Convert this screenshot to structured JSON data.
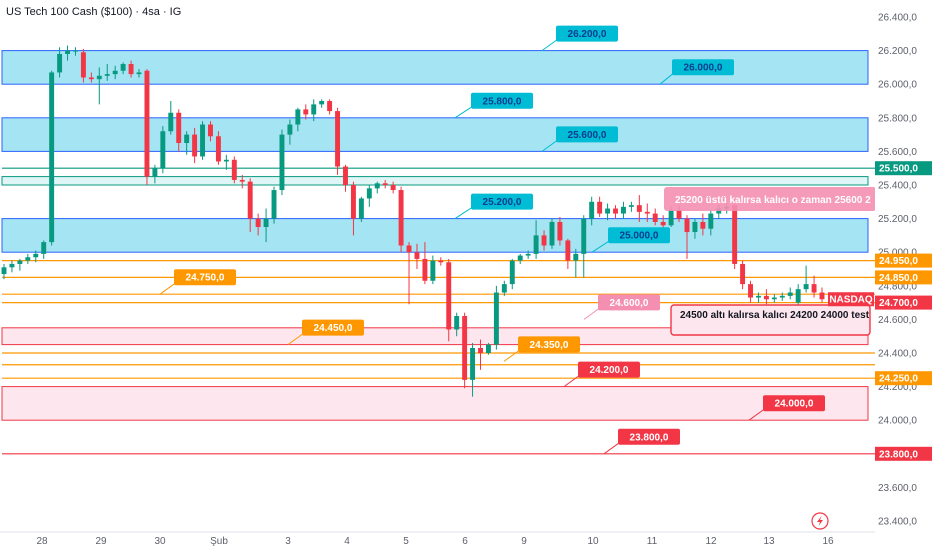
{
  "header": {
    "title": "US Tech 100 Cash ($100) · 4sa · IG"
  },
  "chart_data": {
    "type": "candlestick",
    "title": "US Tech 100 Cash ($100) · 4sa · IG",
    "ylim": [
      23400,
      26400
    ],
    "y_ticks": [
      {
        "value": 26400,
        "label": "26.400,0"
      },
      {
        "value": 26200,
        "label": "26.200,0"
      },
      {
        "value": 26000,
        "label": "26.000,0"
      },
      {
        "value": 25800,
        "label": "25.800,0"
      },
      {
        "value": 25600,
        "label": "25.600,0"
      },
      {
        "value": 25400,
        "label": "25.400,0"
      },
      {
        "value": 25200,
        "label": "25.200,0"
      },
      {
        "value": 25000,
        "label": "25.000,0"
      },
      {
        "value": 24800,
        "label": "24.800,0"
      },
      {
        "value": 24600,
        "label": "24.600,0"
      },
      {
        "value": 24400,
        "label": "24.400,0"
      },
      {
        "value": 24200,
        "label": "24.200,0"
      },
      {
        "value": 24000,
        "label": "24.000,0"
      },
      {
        "value": 23800,
        "label": "23.800,0"
      },
      {
        "value": 23600,
        "label": "23.600,0"
      },
      {
        "value": 23400,
        "label": "23.400,0"
      }
    ],
    "x_ticks": [
      "28",
      "29",
      "30",
      "Şub",
      "3",
      "4",
      "5",
      "6",
      "9",
      "10",
      "11",
      "12",
      "13",
      "16"
    ],
    "candles": [
      {
        "o": 24870,
        "h": 24930,
        "l": 24840,
        "c": 24910
      },
      {
        "o": 24910,
        "h": 24950,
        "l": 24880,
        "c": 24930
      },
      {
        "o": 24930,
        "h": 24960,
        "l": 24890,
        "c": 24950
      },
      {
        "o": 24950,
        "h": 24990,
        "l": 24930,
        "c": 24970
      },
      {
        "o": 24970,
        "h": 25010,
        "l": 24940,
        "c": 24990
      },
      {
        "o": 24990,
        "h": 25070,
        "l": 24960,
        "c": 25060
      },
      {
        "o": 25060,
        "h": 26080,
        "l": 25040,
        "c": 26070
      },
      {
        "o": 26070,
        "h": 26220,
        "l": 26040,
        "c": 26180
      },
      {
        "o": 26180,
        "h": 26230,
        "l": 26140,
        "c": 26200
      },
      {
        "o": 26200,
        "h": 26220,
        "l": 26170,
        "c": 26200
      },
      {
        "o": 26190,
        "h": 26210,
        "l": 26010,
        "c": 26040
      },
      {
        "o": 26040,
        "h": 26070,
        "l": 26010,
        "c": 26030
      },
      {
        "o": 26030,
        "h": 26100,
        "l": 25880,
        "c": 26050
      },
      {
        "o": 26050,
        "h": 26120,
        "l": 26020,
        "c": 26060
      },
      {
        "o": 26060,
        "h": 26110,
        "l": 26030,
        "c": 26080
      },
      {
        "o": 26080,
        "h": 26130,
        "l": 26060,
        "c": 26120
      },
      {
        "o": 26120,
        "h": 26140,
        "l": 26040,
        "c": 26060
      },
      {
        "o": 26060,
        "h": 26090,
        "l": 26040,
        "c": 26070
      },
      {
        "o": 26080,
        "h": 26090,
        "l": 25400,
        "c": 25450
      },
      {
        "o": 25450,
        "h": 25520,
        "l": 25410,
        "c": 25500
      },
      {
        "o": 25500,
        "h": 25750,
        "l": 25470,
        "c": 25720
      },
      {
        "o": 25720,
        "h": 25900,
        "l": 25700,
        "c": 25830
      },
      {
        "o": 25830,
        "h": 25850,
        "l": 25600,
        "c": 25650
      },
      {
        "o": 25650,
        "h": 25720,
        "l": 25580,
        "c": 25700
      },
      {
        "o": 25700,
        "h": 25740,
        "l": 25530,
        "c": 25570
      },
      {
        "o": 25570,
        "h": 25780,
        "l": 25550,
        "c": 25760
      },
      {
        "o": 25760,
        "h": 25780,
        "l": 25660,
        "c": 25690
      },
      {
        "o": 25690,
        "h": 25720,
        "l": 25520,
        "c": 25540
      },
      {
        "o": 25540,
        "h": 25580,
        "l": 25490,
        "c": 25550
      },
      {
        "o": 25550,
        "h": 25570,
        "l": 25410,
        "c": 25430
      },
      {
        "o": 25430,
        "h": 25460,
        "l": 25380,
        "c": 25420
      },
      {
        "o": 25420,
        "h": 25440,
        "l": 25120,
        "c": 25200
      },
      {
        "o": 25200,
        "h": 25230,
        "l": 25100,
        "c": 25150
      },
      {
        "o": 25150,
        "h": 25260,
        "l": 25060,
        "c": 25200
      },
      {
        "o": 25200,
        "h": 25390,
        "l": 25170,
        "c": 25370
      },
      {
        "o": 25370,
        "h": 25730,
        "l": 25340,
        "c": 25700
      },
      {
        "o": 25700,
        "h": 25790,
        "l": 25640,
        "c": 25760
      },
      {
        "o": 25760,
        "h": 25860,
        "l": 25720,
        "c": 25850
      },
      {
        "o": 25850,
        "h": 25880,
        "l": 25790,
        "c": 25820
      },
      {
        "o": 25820,
        "h": 25910,
        "l": 25780,
        "c": 25880
      },
      {
        "o": 25880,
        "h": 25910,
        "l": 25860,
        "c": 25900
      },
      {
        "o": 25900,
        "h": 25910,
        "l": 25820,
        "c": 25840
      },
      {
        "o": 25840,
        "h": 25860,
        "l": 25460,
        "c": 25510
      },
      {
        "o": 25510,
        "h": 25520,
        "l": 25360,
        "c": 25400
      },
      {
        "o": 25400,
        "h": 25420,
        "l": 25100,
        "c": 25200
      },
      {
        "o": 25200,
        "h": 25330,
        "l": 25180,
        "c": 25320
      },
      {
        "o": 25320,
        "h": 25400,
        "l": 25270,
        "c": 25380
      },
      {
        "o": 25380,
        "h": 25420,
        "l": 25350,
        "c": 25410
      },
      {
        "o": 25410,
        "h": 25430,
        "l": 25380,
        "c": 25400
      },
      {
        "o": 25400,
        "h": 25420,
        "l": 25350,
        "c": 25370
      },
      {
        "o": 25370,
        "h": 25390,
        "l": 25000,
        "c": 25040
      },
      {
        "o": 25040,
        "h": 25060,
        "l": 24690,
        "c": 25000
      },
      {
        "o": 25000,
        "h": 25050,
        "l": 24900,
        "c": 24960
      },
      {
        "o": 24960,
        "h": 25060,
        "l": 24810,
        "c": 24830
      },
      {
        "o": 24830,
        "h": 24980,
        "l": 24810,
        "c": 24950
      },
      {
        "o": 24950,
        "h": 24970,
        "l": 24920,
        "c": 24940
      },
      {
        "o": 24940,
        "h": 24960,
        "l": 24470,
        "c": 24540
      },
      {
        "o": 24540,
        "h": 24640,
        "l": 24500,
        "c": 24620
      },
      {
        "o": 24620,
        "h": 24640,
        "l": 24190,
        "c": 24240
      },
      {
        "o": 24240,
        "h": 24460,
        "l": 24140,
        "c": 24430
      },
      {
        "o": 24430,
        "h": 24480,
        "l": 24300,
        "c": 24400
      },
      {
        "o": 24400,
        "h": 24460,
        "l": 24390,
        "c": 24450
      },
      {
        "o": 24450,
        "h": 24800,
        "l": 24420,
        "c": 24760
      },
      {
        "o": 24760,
        "h": 24830,
        "l": 24740,
        "c": 24810
      },
      {
        "o": 24810,
        "h": 24960,
        "l": 24780,
        "c": 24950
      },
      {
        "o": 24950,
        "h": 24990,
        "l": 24930,
        "c": 24980
      },
      {
        "o": 24980,
        "h": 25010,
        "l": 24960,
        "c": 24990
      },
      {
        "o": 24990,
        "h": 25190,
        "l": 24960,
        "c": 25100
      },
      {
        "o": 25100,
        "h": 25130,
        "l": 25010,
        "c": 25040
      },
      {
        "o": 25040,
        "h": 25200,
        "l": 25020,
        "c": 25180
      },
      {
        "o": 25180,
        "h": 25210,
        "l": 25040,
        "c": 25070
      },
      {
        "o": 25070,
        "h": 25080,
        "l": 24900,
        "c": 24950
      },
      {
        "o": 24950,
        "h": 25020,
        "l": 24850,
        "c": 24990
      },
      {
        "o": 24990,
        "h": 25220,
        "l": 24850,
        "c": 25200
      },
      {
        "o": 25200,
        "h": 25330,
        "l": 25160,
        "c": 25300
      },
      {
        "o": 25300,
        "h": 25330,
        "l": 25210,
        "c": 25230
      },
      {
        "o": 25230,
        "h": 25290,
        "l": 25190,
        "c": 25260
      },
      {
        "o": 25260,
        "h": 25280,
        "l": 25200,
        "c": 25230
      },
      {
        "o": 25230,
        "h": 25300,
        "l": 25200,
        "c": 25270
      },
      {
        "o": 25270,
        "h": 25300,
        "l": 25240,
        "c": 25280
      },
      {
        "o": 25280,
        "h": 25340,
        "l": 25180,
        "c": 25240
      },
      {
        "o": 25240,
        "h": 25290,
        "l": 25180,
        "c": 25230
      },
      {
        "o": 25230,
        "h": 25260,
        "l": 25160,
        "c": 25180
      },
      {
        "o": 25180,
        "h": 25220,
        "l": 25100,
        "c": 25160
      },
      {
        "o": 25160,
        "h": 25270,
        "l": 25150,
        "c": 25250
      },
      {
        "o": 25250,
        "h": 25280,
        "l": 25180,
        "c": 25200
      },
      {
        "o": 25200,
        "h": 25220,
        "l": 24960,
        "c": 25120
      },
      {
        "o": 25120,
        "h": 25200,
        "l": 25080,
        "c": 25180
      },
      {
        "o": 25180,
        "h": 25230,
        "l": 25100,
        "c": 25140
      },
      {
        "o": 25140,
        "h": 25250,
        "l": 25100,
        "c": 25230
      },
      {
        "o": 25230,
        "h": 25280,
        "l": 25200,
        "c": 25260
      },
      {
        "o": 25260,
        "h": 25290,
        "l": 25230,
        "c": 25270
      },
      {
        "o": 25280,
        "h": 25290,
        "l": 24900,
        "c": 24930
      },
      {
        "o": 24930,
        "h": 24950,
        "l": 24780,
        "c": 24810
      },
      {
        "o": 24810,
        "h": 24830,
        "l": 24700,
        "c": 24730
      },
      {
        "o": 24730,
        "h": 24760,
        "l": 24700,
        "c": 24740
      },
      {
        "o": 24740,
        "h": 24780,
        "l": 24690,
        "c": 24720
      },
      {
        "o": 24720,
        "h": 24750,
        "l": 24700,
        "c": 24730
      },
      {
        "o": 24730,
        "h": 24760,
        "l": 24710,
        "c": 24740
      },
      {
        "o": 24740,
        "h": 24790,
        "l": 24720,
        "c": 24760
      },
      {
        "o": 24700,
        "h": 24810,
        "l": 24600,
        "c": 24780
      },
      {
        "o": 24780,
        "h": 24920,
        "l": 24760,
        "c": 24810
      },
      {
        "o": 24810,
        "h": 24860,
        "l": 24730,
        "c": 24760
      },
      {
        "o": 24760,
        "h": 24790,
        "l": 24700,
        "c": 24720
      }
    ],
    "zones": [
      {
        "from": 26000,
        "to": 26200,
        "color": "#a5e4f3",
        "border": "#2962ff"
      },
      {
        "from": 25600,
        "to": 25800,
        "color": "#a5e4f3",
        "border": "#2962ff"
      },
      {
        "from": 25400,
        "to": 25450,
        "color": "#e0f5f5",
        "border": "#089981"
      },
      {
        "from": 25000,
        "to": 25200,
        "color": "#a5e4f3",
        "border": "#2962ff"
      },
      {
        "from": 24450,
        "to": 24550,
        "color": "#fde6ee",
        "border": "#f23645"
      },
      {
        "from": 24000,
        "to": 24200,
        "color": "#fde6ee",
        "border": "#f23645"
      }
    ],
    "h_lines": [
      {
        "value": 25500,
        "color": "#089981"
      },
      {
        "value": 24950,
        "color": "#ff9800"
      },
      {
        "value": 24850,
        "color": "#ff9800"
      },
      {
        "value": 24750,
        "color": "#ff9800"
      },
      {
        "value": 24700,
        "color": "#ff9800"
      },
      {
        "value": 24400,
        "color": "#ff9800"
      },
      {
        "value": 24330,
        "color": "#ff9800"
      },
      {
        "value": 24250,
        "color": "#ff9800"
      },
      {
        "value": 23800,
        "color": "#f23645"
      }
    ],
    "callouts": [
      {
        "text": "26.200,0",
        "value": 26200,
        "color": "#00bcd4"
      },
      {
        "text": "26.000,0",
        "value": 26000,
        "color": "#00bcd4"
      },
      {
        "text": "25.800,0",
        "value": 25800,
        "color": "#00bcd4"
      },
      {
        "text": "25.600,0",
        "value": 25600,
        "color": "#00bcd4"
      },
      {
        "text": "25.200,0",
        "value": 25200,
        "color": "#00bcd4"
      },
      {
        "text": "25.000,0",
        "value": 25000,
        "color": "#00bcd4"
      },
      {
        "text": "24.750,0",
        "value": 24750,
        "color": "#ff9800"
      },
      {
        "text": "24.600,0",
        "value": 24600,
        "color": "#f48fb1"
      },
      {
        "text": "24.450,0",
        "value": 24450,
        "color": "#ff9800"
      },
      {
        "text": "24.350,0",
        "value": 24350,
        "color": "#ff9800"
      },
      {
        "text": "24.200,0",
        "value": 24200,
        "color": "#f23645"
      },
      {
        "text": "24.000,0",
        "value": 24000,
        "color": "#f23645"
      },
      {
        "text": "23.800,0",
        "value": 23800,
        "color": "#f23645"
      }
    ],
    "notes": [
      {
        "text": "25200 üstü kalırsa kalıcı o zaman 25600 2",
        "color": "#f48fb1"
      },
      {
        "text": "24500  altı kalırsa kalıcı 24200 24000 test",
        "color": "#f23645"
      }
    ],
    "price_labels": [
      {
        "text": "25.500,0",
        "value": 25500,
        "color": "#089981"
      },
      {
        "text": "24.950,0",
        "value": 24950,
        "color": "#ff9800"
      },
      {
        "text": "24.850,0",
        "value": 24850,
        "color": "#ff9800"
      },
      {
        "text": "24.700,0",
        "value": 24700,
        "color": "#f23645"
      },
      {
        "text": "24.250,0",
        "value": 24250,
        "color": "#ff9800"
      },
      {
        "text": "23.800,0",
        "value": 23800,
        "color": "#f23645"
      }
    ],
    "symbol_label": "NASDAQ",
    "colors": {
      "up": "#089981",
      "down": "#f23645"
    }
  },
  "icons": {
    "flash": "lightning-icon"
  }
}
